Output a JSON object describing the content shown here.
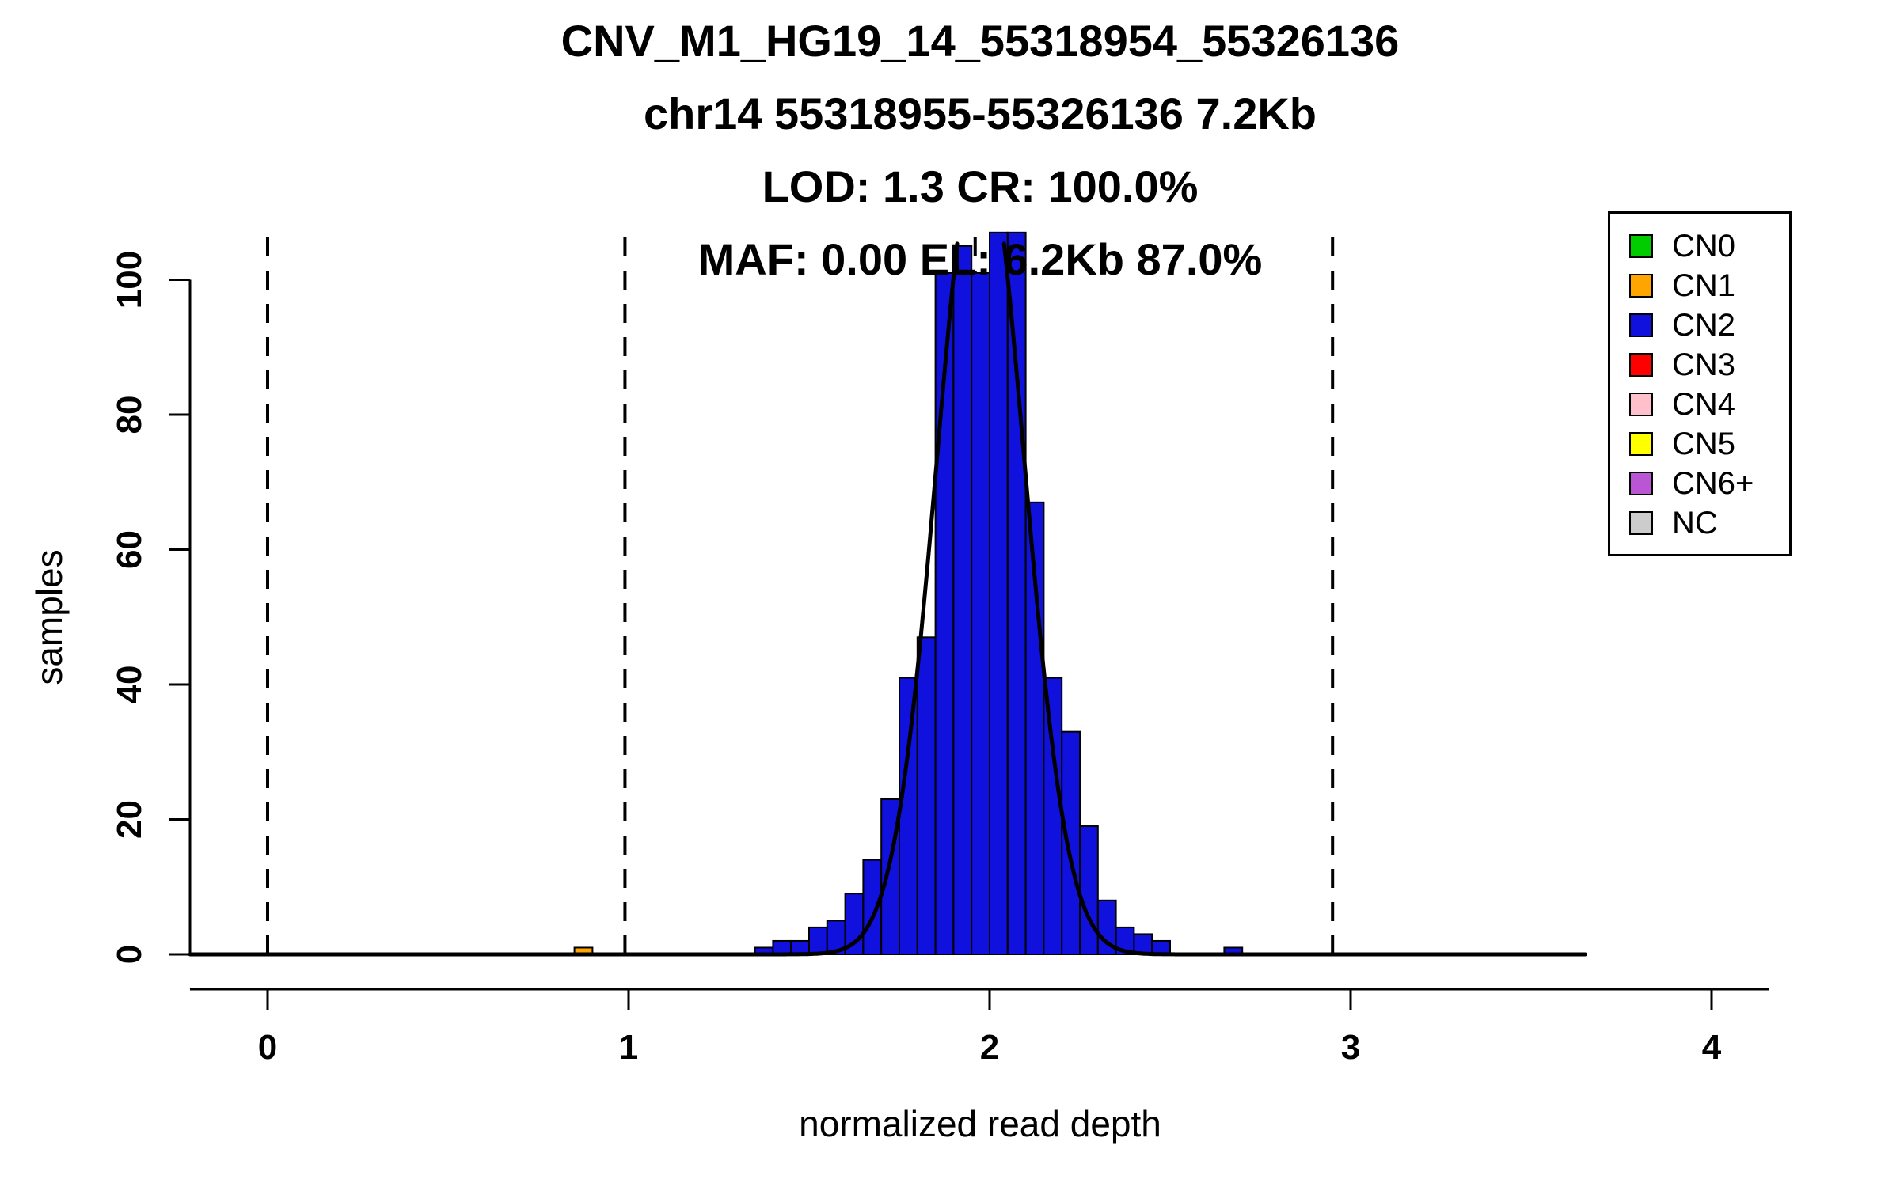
{
  "chart_data": {
    "type": "bar",
    "subtype": "histogram",
    "title_lines": [
      "CNV_M1_HG19_14_55318954_55326136",
      "chr14 55318955-55326136 7.2Kb",
      "LOD: 1.3 CR: 100.0%",
      "MAF: 0.00 EL: 6.2Kb 87.0%"
    ],
    "xlabel": "normalized read depth",
    "ylabel": "samples",
    "x_ticks": [
      0,
      1,
      2,
      3,
      4
    ],
    "y_ticks": [
      0,
      20,
      40,
      60,
      80,
      100
    ],
    "xlim": [
      -0.215,
      4.16
    ],
    "ylim": [
      0,
      110.5
    ],
    "grid": false,
    "bin_width": 0.05,
    "series_colors": {
      "CN0": "#00CC00",
      "CN1": "#FFA500",
      "CN2": "#1111DD",
      "CN3": "#FF0000",
      "CN4": "#FFC0CB",
      "CN5": "#FFFF00",
      "CN6+": "#BA55D3",
      "NC": "#CCCCCC"
    },
    "bars": [
      {
        "x": 0.85,
        "height": 1,
        "cn": "CN1"
      },
      {
        "x": 1.35,
        "height": 1,
        "cn": "CN2"
      },
      {
        "x": 1.4,
        "height": 2,
        "cn": "CN2"
      },
      {
        "x": 1.45,
        "height": 2,
        "cn": "CN2"
      },
      {
        "x": 1.5,
        "height": 4,
        "cn": "CN2"
      },
      {
        "x": 1.55,
        "height": 5,
        "cn": "CN2"
      },
      {
        "x": 1.6,
        "height": 9,
        "cn": "CN2"
      },
      {
        "x": 1.65,
        "height": 14,
        "cn": "CN2"
      },
      {
        "x": 1.7,
        "height": 23,
        "cn": "CN2"
      },
      {
        "x": 1.75,
        "height": 41,
        "cn": "CN2"
      },
      {
        "x": 1.8,
        "height": 47,
        "cn": "CN2"
      },
      {
        "x": 1.85,
        "height": 101,
        "cn": "CN2"
      },
      {
        "x": 1.9,
        "height": 105,
        "cn": "CN2"
      },
      {
        "x": 1.95,
        "height": 101,
        "cn": "CN2"
      },
      {
        "x": 2.0,
        "height": 107,
        "cn": "CN2"
      },
      {
        "x": 2.05,
        "height": 107,
        "cn": "CN2"
      },
      {
        "x": 2.1,
        "height": 67,
        "cn": "CN2"
      },
      {
        "x": 2.15,
        "height": 41,
        "cn": "CN2"
      },
      {
        "x": 2.2,
        "height": 33,
        "cn": "CN2"
      },
      {
        "x": 2.25,
        "height": 19,
        "cn": "CN2"
      },
      {
        "x": 2.3,
        "height": 8,
        "cn": "CN2"
      },
      {
        "x": 2.35,
        "height": 4,
        "cn": "CN2"
      },
      {
        "x": 2.4,
        "height": 3,
        "cn": "CN2"
      },
      {
        "x": 2.45,
        "height": 2,
        "cn": "CN2"
      },
      {
        "x": 2.65,
        "height": 1,
        "cn": "CN2"
      }
    ],
    "dashed_lines_x": [
      0.0,
      0.99,
      1.96,
      2.95
    ],
    "density_curve": {
      "mean": 1.975,
      "sd": 0.12,
      "peak": 122,
      "x_start": -0.215,
      "x_end": 3.65
    },
    "legend": {
      "position": "top-right",
      "entries": [
        {
          "label": "CN0",
          "color": "#00CC00"
        },
        {
          "label": "CN1",
          "color": "#FFA500"
        },
        {
          "label": "CN2",
          "color": "#1111DD"
        },
        {
          "label": "CN3",
          "color": "#FF0000"
        },
        {
          "label": "CN4",
          "color": "#FFC0CB"
        },
        {
          "label": "CN5",
          "color": "#FFFF00"
        },
        {
          "label": "CN6+",
          "color": "#BA55D3"
        },
        {
          "label": "NC",
          "color": "#CCCCCC"
        }
      ]
    }
  }
}
